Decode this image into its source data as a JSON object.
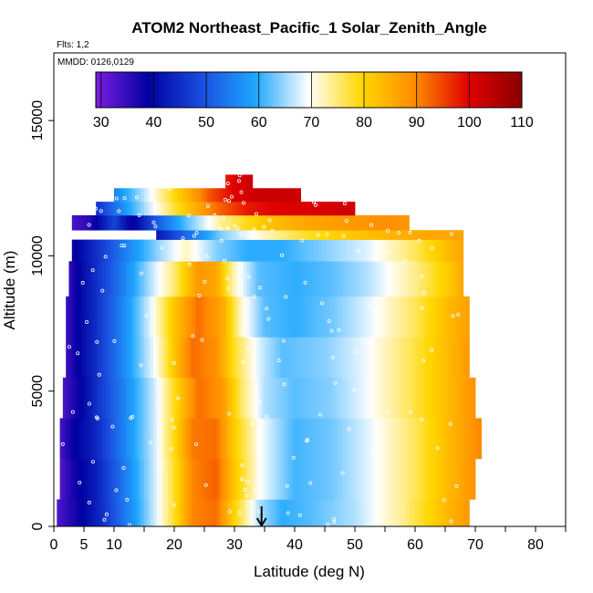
{
  "chart_data": {
    "type": "heatmap",
    "title": "ATOM2 Northeast_Pacific_1 Solar_Zenith_Angle",
    "subtitle_flights": "Flts: 1,2",
    "subtitle_dates": "MMDD: 0126,0129",
    "xlabel": "Latitude (deg N)",
    "ylabel": "Altitude (m)",
    "xlim": [
      0,
      85
    ],
    "ylim": [
      0,
      17500
    ],
    "x_ticks": [
      0,
      5,
      10,
      20,
      30,
      40,
      50,
      60,
      70,
      80
    ],
    "y_ticks": [
      0,
      5000,
      10000,
      15000
    ],
    "colorbar": {
      "min": 29,
      "max": 110,
      "ticks": [
        30,
        40,
        50,
        60,
        70,
        80,
        90,
        100,
        110
      ],
      "colors": [
        "#7a1fe0",
        "#0000a0",
        "#1a4fe0",
        "#1fa7ff",
        "#ffffff",
        "#ffd700",
        "#ff8a00",
        "#e00000",
        "#8b0000"
      ]
    },
    "arrow_marker_latitude": 34.5,
    "layers": [
      {
        "alt": [
          0,
          1000
        ],
        "lat_range": [
          0.5,
          69
        ],
        "profile": [
          [
            0.5,
            32
          ],
          [
            2,
            35
          ],
          [
            4,
            38
          ],
          [
            8,
            45
          ],
          [
            13,
            57
          ],
          [
            17,
            68
          ],
          [
            20,
            78
          ],
          [
            23,
            90
          ],
          [
            27,
            92
          ],
          [
            30,
            80
          ],
          [
            34,
            66
          ],
          [
            38,
            60
          ],
          [
            43,
            62
          ],
          [
            50,
            66
          ],
          [
            58,
            74
          ],
          [
            64,
            82
          ],
          [
            69,
            88
          ]
        ]
      },
      {
        "alt": [
          1000,
          2500
        ],
        "lat_range": [
          1,
          70
        ],
        "profile": [
          [
            1,
            32
          ],
          [
            3,
            37
          ],
          [
            7,
            43
          ],
          [
            12,
            55
          ],
          [
            17,
            68
          ],
          [
            20,
            78
          ],
          [
            23,
            90
          ],
          [
            27,
            93
          ],
          [
            30,
            82
          ],
          [
            34,
            70
          ],
          [
            40,
            61
          ],
          [
            46,
            63
          ],
          [
            52,
            68
          ],
          [
            60,
            76
          ],
          [
            66,
            84
          ],
          [
            70,
            89
          ]
        ]
      },
      {
        "alt": [
          2500,
          4000
        ],
        "lat_range": [
          1,
          71
        ],
        "profile": [
          [
            1,
            33
          ],
          [
            3,
            38
          ],
          [
            7,
            44
          ],
          [
            12,
            56
          ],
          [
            17,
            68
          ],
          [
            20,
            79
          ],
          [
            23,
            91
          ],
          [
            27,
            92
          ],
          [
            30,
            81
          ],
          [
            34,
            70
          ],
          [
            40,
            61
          ],
          [
            46,
            63
          ],
          [
            52,
            68
          ],
          [
            60,
            76
          ],
          [
            66,
            84
          ],
          [
            71,
            90
          ]
        ]
      },
      {
        "alt": [
          4000,
          5500
        ],
        "lat_range": [
          1.5,
          70
        ],
        "profile": [
          [
            1.5,
            33
          ],
          [
            4,
            38
          ],
          [
            7,
            45
          ],
          [
            12,
            56
          ],
          [
            17,
            68
          ],
          [
            21,
            82
          ],
          [
            24,
            92
          ],
          [
            28,
            88
          ],
          [
            31,
            76
          ],
          [
            35,
            66
          ],
          [
            40,
            62
          ],
          [
            46,
            64
          ],
          [
            52,
            69
          ],
          [
            60,
            77
          ],
          [
            66,
            84
          ],
          [
            70,
            89
          ]
        ]
      },
      {
        "alt": [
          5500,
          7000
        ],
        "lat_range": [
          2,
          69
        ],
        "profile": [
          [
            2,
            34
          ],
          [
            4,
            39
          ],
          [
            7,
            45
          ],
          [
            12,
            57
          ],
          [
            17,
            70
          ],
          [
            20,
            82
          ],
          [
            23,
            92
          ],
          [
            27,
            89
          ],
          [
            30,
            78
          ],
          [
            34,
            68
          ],
          [
            38,
            62
          ],
          [
            45,
            64
          ],
          [
            52,
            69
          ],
          [
            60,
            77
          ],
          [
            66,
            84
          ],
          [
            69,
            88
          ]
        ]
      },
      {
        "alt": [
          7000,
          8500
        ],
        "lat_range": [
          2,
          69
        ],
        "profile": [
          [
            2,
            34
          ],
          [
            4,
            39
          ],
          [
            7,
            45
          ],
          [
            12,
            57
          ],
          [
            16,
            68
          ],
          [
            20,
            82
          ],
          [
            24,
            92
          ],
          [
            28,
            86
          ],
          [
            31,
            72
          ],
          [
            35,
            62
          ],
          [
            40,
            60
          ],
          [
            46,
            63
          ],
          [
            52,
            68
          ],
          [
            60,
            76
          ],
          [
            66,
            84
          ],
          [
            69,
            87
          ]
        ]
      },
      {
        "alt": [
          8500,
          9800
        ],
        "lat_range": [
          2.5,
          68
        ],
        "profile": [
          [
            2.5,
            35
          ],
          [
            4,
            39
          ],
          [
            7,
            45
          ],
          [
            12,
            56
          ],
          [
            16,
            66
          ],
          [
            20,
            75
          ],
          [
            24,
            88
          ],
          [
            27,
            86
          ],
          [
            30,
            72
          ],
          [
            34,
            62
          ],
          [
            40,
            60
          ],
          [
            46,
            62
          ],
          [
            52,
            66
          ],
          [
            60,
            74
          ],
          [
            66,
            82
          ],
          [
            68,
            86
          ]
        ]
      },
      {
        "alt": [
          9800,
          10600
        ],
        "lat_range": [
          3,
          68
        ],
        "profile": [
          [
            3,
            38
          ],
          [
            7,
            45
          ],
          [
            12,
            55
          ],
          [
            17,
            64
          ],
          [
            22,
            72
          ],
          [
            27,
            64
          ],
          [
            32,
            60
          ],
          [
            38,
            60
          ],
          [
            45,
            64
          ],
          [
            52,
            68
          ],
          [
            60,
            76
          ],
          [
            66,
            84
          ],
          [
            68,
            86
          ]
        ]
      },
      {
        "alt": [
          10600,
          10950
        ],
        "lat_range": [
          17,
          68
        ],
        "profile": [
          [
            17,
            42
          ],
          [
            22,
            52
          ],
          [
            28,
            64
          ],
          [
            35,
            72
          ],
          [
            42,
            78
          ],
          [
            50,
            82
          ],
          [
            58,
            85
          ],
          [
            64,
            86
          ],
          [
            68,
            86
          ]
        ]
      },
      {
        "alt": [
          10950,
          11500
        ],
        "lat_range": [
          3,
          59
        ],
        "profile": [
          [
            3,
            33
          ],
          [
            6,
            36
          ],
          [
            10,
            48
          ],
          [
            13,
            38
          ],
          [
            17,
            50
          ],
          [
            22,
            62
          ],
          [
            28,
            74
          ],
          [
            35,
            82
          ],
          [
            42,
            86
          ],
          [
            50,
            88
          ],
          [
            56,
            89
          ],
          [
            59,
            88
          ]
        ]
      },
      {
        "alt": [
          11500,
          12000
        ],
        "lat_range": [
          7,
          50
        ],
        "profile": [
          [
            7,
            45
          ],
          [
            12,
            58
          ],
          [
            17,
            70
          ],
          [
            22,
            82
          ],
          [
            27,
            92
          ],
          [
            32,
            98
          ],
          [
            37,
            100
          ],
          [
            44,
            101
          ],
          [
            50,
            102
          ]
        ]
      },
      {
        "alt": [
          12000,
          12500
        ],
        "lat_range": [
          10,
          41
        ],
        "profile": [
          [
            10,
            55
          ],
          [
            14,
            64
          ],
          [
            18,
            74
          ],
          [
            22,
            84
          ],
          [
            26,
            94
          ],
          [
            30,
            100
          ],
          [
            35,
            103
          ],
          [
            41,
            102
          ]
        ]
      },
      {
        "alt": [
          12500,
          13000
        ],
        "lat_range": [
          28.5,
          33
        ],
        "profile": [
          [
            28.5,
            98
          ],
          [
            31,
            101
          ],
          [
            33,
            102
          ]
        ]
      }
    ]
  }
}
